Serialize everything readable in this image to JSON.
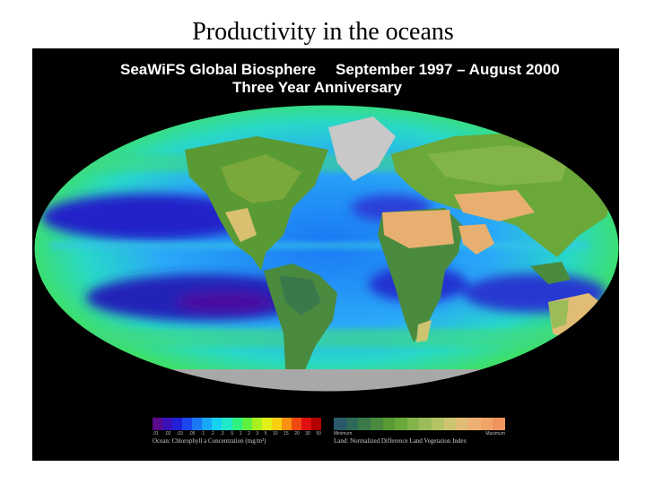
{
  "slide": {
    "title": "Productivity in the oceans"
  },
  "figure": {
    "header_left": "SeaWiFS Global Biosphere",
    "header_right": "September 1997 – August 2000",
    "subheader": "Three Year Anniversary"
  },
  "legend": {
    "ocean": {
      "label": "Ocean: Chlorophyll a Concentration (mg/m³)",
      "ticks": [
        ".01",
        ".02",
        ".03",
        ".05",
        ".1",
        ".2",
        ".3",
        ".5",
        "1",
        "2",
        "3",
        "5",
        "10",
        "15",
        "20",
        "30",
        "50"
      ],
      "colors": [
        "#5a0a8a",
        "#3a10b8",
        "#2020d8",
        "#1a48ec",
        "#1a78f4",
        "#18a8f8",
        "#18d0f0",
        "#20e8c8",
        "#30f080",
        "#60f040",
        "#a8f020",
        "#e0f018",
        "#f8d010",
        "#f89010",
        "#f04810",
        "#e01010",
        "#b00000"
      ]
    },
    "land": {
      "label": "Land: Normalized Difference Land Vegetation Index",
      "tick_min": "Minimum",
      "tick_max": "Maximum",
      "colors": [
        "#2a5a6a",
        "#2e6a5a",
        "#3a7a4a",
        "#4a8a3e",
        "#5a9a34",
        "#6aa83a",
        "#82b44a",
        "#9cbc5a",
        "#b4c464",
        "#ccc470",
        "#e0bc74",
        "#ecb074",
        "#f0a468",
        "#f09460"
      ]
    }
  },
  "colors": {
    "oligotrophic": "#2424c8",
    "open_ocean": "#3aa0f0",
    "productive": "#30e070",
    "desert": "#e8b070",
    "ice": "#a8a8a8"
  }
}
